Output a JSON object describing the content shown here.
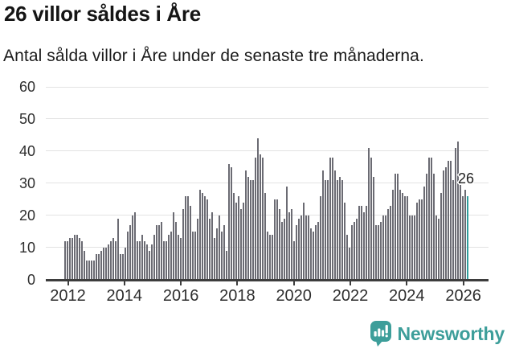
{
  "header": {
    "title": "26 villor såldes i Åre",
    "subtitle": "Antal sålda villor i Åre under de senaste tre månaderna."
  },
  "chart_data": {
    "type": "bar",
    "title": "26 villor såldes i Åre",
    "subtitle": "Antal sålda villor i Åre under de senaste tre månaderna.",
    "frequency": "monthly rolling 3-month sum",
    "x_start": 2011.9,
    "x_end": 2026.1,
    "xlabel": "",
    "ylabel": "",
    "ylim": [
      0,
      60
    ],
    "yticks": [
      0,
      10,
      20,
      30,
      40,
      50,
      60
    ],
    "xticks": [
      2012,
      2014,
      2016,
      2018,
      2020,
      2022,
      2024,
      2026
    ],
    "grid": true,
    "legend": false,
    "values": [
      12,
      12,
      13,
      13,
      14,
      14,
      13,
      12,
      9,
      6,
      6,
      6,
      6,
      8,
      8,
      9,
      10,
      10,
      11,
      12,
      13,
      12,
      19,
      8,
      8,
      10,
      15,
      17,
      20,
      21,
      12,
      12,
      14,
      12,
      11,
      9,
      11,
      14,
      17,
      17,
      18,
      12,
      12,
      14,
      15,
      21,
      18,
      14,
      13,
      22,
      26,
      26,
      23,
      15,
      15,
      19,
      28,
      27,
      26,
      25,
      19,
      21,
      13,
      16,
      20,
      15,
      17,
      9,
      36,
      35,
      27,
      24,
      26,
      22,
      24,
      34,
      32,
      31,
      31,
      38,
      44,
      39,
      38,
      27,
      15,
      14,
      14,
      25,
      25,
      22,
      18,
      19,
      29,
      21,
      22,
      12,
      17,
      19,
      20,
      24,
      20,
      20,
      16,
      15,
      17,
      18,
      26,
      34,
      31,
      31,
      38,
      38,
      34,
      31,
      32,
      31,
      24,
      14,
      10,
      17,
      18,
      19,
      23,
      23,
      21,
      23,
      41,
      38,
      32,
      17,
      17,
      18,
      20,
      20,
      22,
      23,
      28,
      33,
      33,
      28,
      27,
      26,
      26,
      20,
      20,
      20,
      24,
      25,
      25,
      29,
      33,
      38,
      38,
      33,
      20,
      19,
      27,
      34,
      35,
      37,
      37,
      31,
      41,
      43,
      31,
      26,
      28,
      26
    ],
    "highlight_last_value": 26,
    "annotation": {
      "text": "26"
    },
    "bar_color": "#6b6b73",
    "highlight_color": "#2f9e9c",
    "gridline_color": "#e3e3e3",
    "axis_color": "#3d3d3d"
  },
  "footer": {
    "brand": "Newsworthy",
    "logo_icon": "bar-chart-speech-bubble-icon",
    "brand_color": "#3d9e9a"
  }
}
